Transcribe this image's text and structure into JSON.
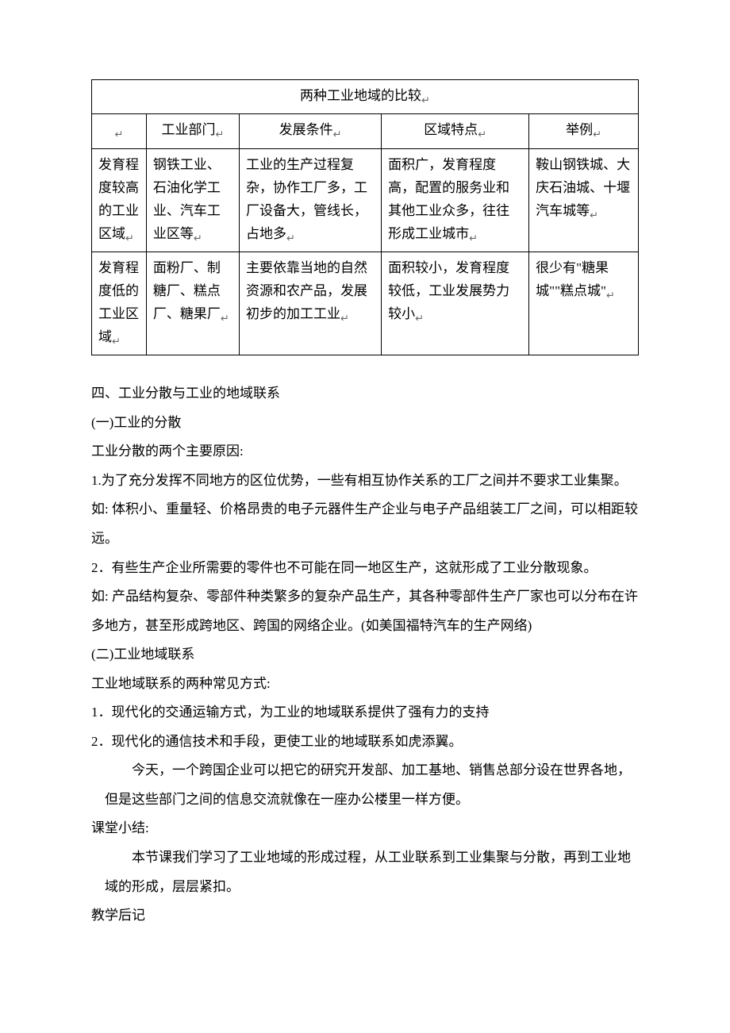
{
  "table": {
    "title": "两种工业地域的比较",
    "headers": [
      "",
      "工业部门",
      "发展条件",
      "区域特点",
      "举例"
    ],
    "rows": [
      {
        "c0": "发育程度较高的工业区域",
        "c1": "钢铁工业、石油化学工业、汽车工业区等",
        "c2": "工业的生产过程复杂，协作工厂多，工厂设备大，管线长，占地多",
        "c3": "面积广，发育程度高，配置的服务业和其他工业众多，往往形成工业城市",
        "c4": "鞍山钢铁城、大庆石油城、十堰汽车城等"
      },
      {
        "c0": "发育程度低的工业区域",
        "c1": "面粉厂、制糖厂、糕点厂、糖果厂",
        "c2": "主要依靠当地的自然资源和农产品，发展初步的加工工业",
        "c3": "面积较小，发育程度较低，工业发展势力较小",
        "c4": "很少有\"糖果城\"\"糕点城\""
      }
    ]
  },
  "body": {
    "h4": "四、工业分散与工业的地域联系",
    "s1h": "(一)工业的分散",
    "s1p0": "工业分散的两个主要原因:",
    "s1p1": "1.为了充分发挥不同地方的区位优势，一些有相互协作关系的工厂之间并不要求工业集聚。",
    "s1p2": "如: 体积小、重量轻、价格昂贵的电子元器件生产企业与电子产品组装工厂之间，可以相距较远。",
    "s1p3": "2．有些生产企业所需要的零件也不可能在同一地区生产，这就形成了工业分散现象。",
    "s1p4": "如: 产品结构复杂、零部件种类繁多的复杂产品生产，其各种零部件生产厂家也可以分布在许多地方，甚至形成跨地区、跨国的网络企业。(如美国福特汽车的生产网络)",
    "s2h": "(二)工业地域联系",
    "s2p0": "工业地域联系的两种常见方式:",
    "s2p1": "1．现代化的交通运输方式，为工业的地域联系提供了强有力的支持",
    "s2p2": "2．现代化的通信技术和手段，更使工业的地域联系如虎添翼。",
    "s2p3": "今天，一个跨国企业可以把它的研究开发部、加工基地、销售总部分设在世界各地，但是这些部门之间的信息交流就像在一座办公楼里一样方便。",
    "summaryh": "课堂小结:",
    "summaryp": "本节课我们学习了工业地域的形成过程，从工业联系到工业集聚与分散，再到工业地域的形成，层层紧扣。",
    "posth": "教学后记"
  },
  "style": {
    "text_color": "#000000",
    "background": "#ffffff",
    "border_color": "#000000",
    "font_family": "SimSun",
    "body_fontsize": 17,
    "line_height": 2.15,
    "marker_char": "↵"
  }
}
